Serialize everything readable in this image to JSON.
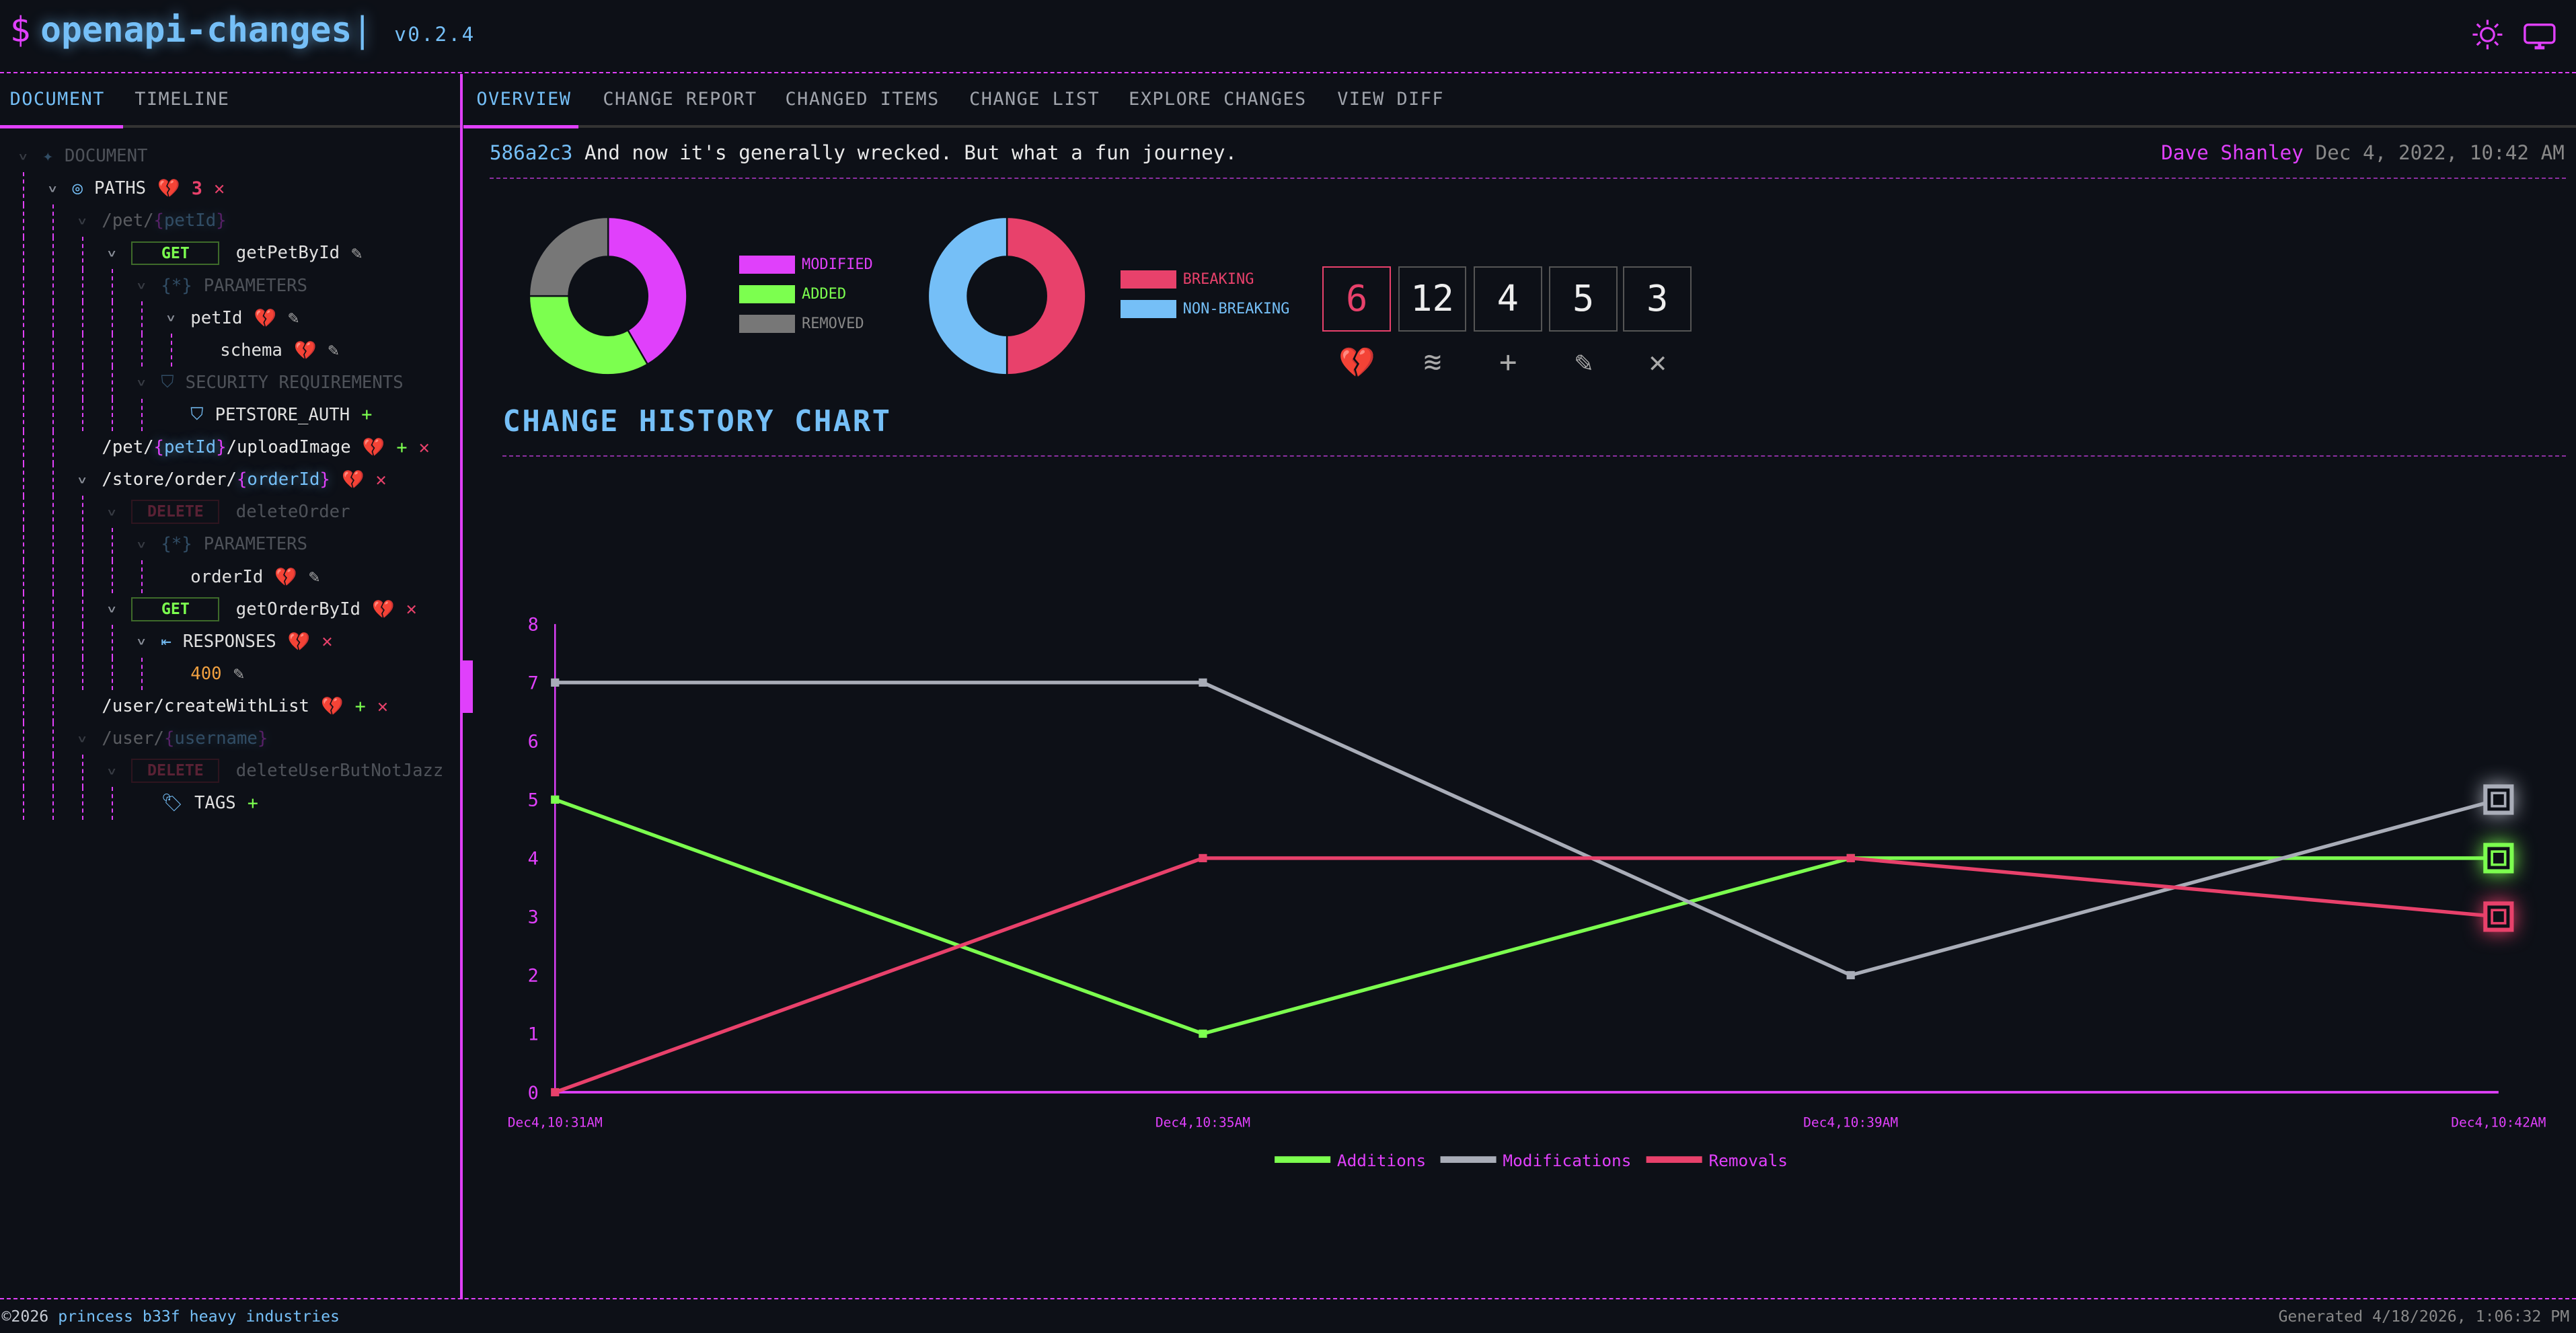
{
  "header": {
    "prompt": "$",
    "app_name": "openapi-changes",
    "cursor": "|",
    "version": "v0.2.4",
    "icons": [
      "sun-icon",
      "monitor-icon"
    ]
  },
  "left_tabs": [
    {
      "label": "DOCUMENT",
      "active": true
    },
    {
      "label": "TIMELINE",
      "active": false
    }
  ],
  "tree": [
    {
      "depth": 0,
      "caret": true,
      "icon": "✦",
      "icon_name": "sparkle-icon",
      "label": "DOCUMENT",
      "dim": true,
      "markers": []
    },
    {
      "depth": 1,
      "caret": true,
      "icon": "◎",
      "icon_name": "compass-icon",
      "label": "PATHS",
      "markers": [
        "heart",
        "3",
        "x"
      ]
    },
    {
      "depth": 2,
      "caret": true,
      "label": "/pet/{petId}",
      "path": true,
      "dim": true,
      "markers": []
    },
    {
      "depth": 3,
      "caret": true,
      "method": "GET",
      "label": "getPetById",
      "markers": [
        "edit"
      ]
    },
    {
      "depth": 4,
      "caret": true,
      "icon": "{*}",
      "icon_name": "parameters-icon",
      "label": "PARAMETERS",
      "dim": true,
      "markers": []
    },
    {
      "depth": 5,
      "caret": true,
      "label": "petId",
      "markers": [
        "heart",
        "edit"
      ]
    },
    {
      "depth": 6,
      "caret": false,
      "label": "schema",
      "markers": [
        "heart",
        "edit"
      ]
    },
    {
      "depth": 4,
      "caret": true,
      "icon": "⛉",
      "icon_name": "shield-icon",
      "label": "SECURITY REQUIREMENTS",
      "dim": true,
      "markers": []
    },
    {
      "depth": 5,
      "caret": false,
      "icon": "⛉",
      "icon_name": "shield-icon",
      "label": "PETSTORE_AUTH",
      "markers": [
        "plus"
      ]
    },
    {
      "depth": 2,
      "caret": false,
      "label": "/pet/{petId}/uploadImage",
      "path": true,
      "markers": [
        "heart",
        "plus",
        "x"
      ]
    },
    {
      "depth": 2,
      "caret": true,
      "label": "/store/order/{orderId}",
      "path": true,
      "markers": [
        "heart",
        "x"
      ]
    },
    {
      "depth": 3,
      "caret": true,
      "method": "DELETE",
      "label": "deleteOrder",
      "dim": true,
      "markers": []
    },
    {
      "depth": 4,
      "caret": true,
      "icon": "{*}",
      "icon_name": "parameters-icon",
      "label": "PARAMETERS",
      "dim": true,
      "markers": []
    },
    {
      "depth": 5,
      "caret": false,
      "label": "orderId",
      "markers": [
        "heart",
        "edit"
      ]
    },
    {
      "depth": 3,
      "caret": true,
      "method": "GET",
      "label": "getOrderById",
      "markers": [
        "heart",
        "x"
      ]
    },
    {
      "depth": 4,
      "caret": true,
      "icon": "⇤",
      "icon_name": "responses-icon",
      "label": "RESPONSES",
      "markers": [
        "heart",
        "x"
      ]
    },
    {
      "depth": 5,
      "caret": false,
      "label": "400",
      "code": true,
      "markers": [
        "edit"
      ]
    },
    {
      "depth": 2,
      "caret": false,
      "label": "/user/createWithList",
      "path": true,
      "markers": [
        "heart",
        "plus",
        "x"
      ]
    },
    {
      "depth": 2,
      "caret": true,
      "label": "/user/{username}",
      "path": true,
      "dim": true,
      "markers": []
    },
    {
      "depth": 3,
      "caret": true,
      "method": "DELETE",
      "label": "deleteUserButNotJazz",
      "dim": true,
      "markers": []
    },
    {
      "depth": 4,
      "caret": false,
      "icon": "🏷",
      "icon_name": "tag-icon",
      "label": "TAGS",
      "markers": [
        "plus"
      ]
    }
  ],
  "main_tabs": [
    {
      "label": "OVERVIEW",
      "active": true
    },
    {
      "label": "CHANGE REPORT"
    },
    {
      "label": "CHANGED ITEMS"
    },
    {
      "label": "CHANGE LIST"
    },
    {
      "label": "EXPLORE CHANGES"
    },
    {
      "label": "VIEW DIFF"
    }
  ],
  "commit": {
    "hash": "586a2c3",
    "message": "And now it's generally wrecked. But what a fun journey.",
    "author": "Dave Shanley",
    "date": "Dec 4, 2022, 10:42 AM"
  },
  "donut_changes": {
    "slices": [
      {
        "label": "MODIFIED",
        "value": 5,
        "color": "#e040fb"
      },
      {
        "label": "ADDED",
        "value": 4,
        "color": "#7cff4f"
      },
      {
        "label": "REMOVED",
        "value": 3,
        "color": "#777777"
      }
    ]
  },
  "donut_breaking": {
    "slices": [
      {
        "label": "BREAKING",
        "value": 6,
        "color": "#e8416b"
      },
      {
        "label": "NON-BREAKING",
        "value": 6,
        "color": "#75bff7"
      }
    ]
  },
  "counts": [
    {
      "value": "6",
      "icon": "broken-heart-icon"
    },
    {
      "value": "12",
      "icon": "layers-icon"
    },
    {
      "value": "4",
      "icon": "plus-icon"
    },
    {
      "value": "5",
      "icon": "pencil-icon"
    },
    {
      "value": "3",
      "icon": "close-icon"
    }
  ],
  "chart_title": "CHANGE HISTORY CHART",
  "chart_data": {
    "type": "line",
    "x": [
      "Dec4,10:31AM",
      "Dec4,10:35AM",
      "Dec4,10:39AM",
      "Dec4,10:42AM"
    ],
    "ylim": [
      0,
      8
    ],
    "yticks": [
      "0",
      "1",
      "2",
      "3",
      "4",
      "5",
      "6",
      "7",
      "8"
    ],
    "series": [
      {
        "name": "Additions",
        "values": [
          5,
          1,
          4,
          4
        ],
        "color": "#7cff4f"
      },
      {
        "name": "Modifications",
        "values": [
          7,
          7,
          2,
          5
        ],
        "color": "#a9adb8"
      },
      {
        "name": "Removals",
        "values": [
          0,
          4,
          4,
          3
        ],
        "color": "#e8416b"
      }
    ],
    "legend": "bottom-center"
  },
  "footer": {
    "copyright": "©2026",
    "company": "princess b33f heavy industries",
    "generated": "Generated 4/18/2026, 1:06:32 PM"
  }
}
